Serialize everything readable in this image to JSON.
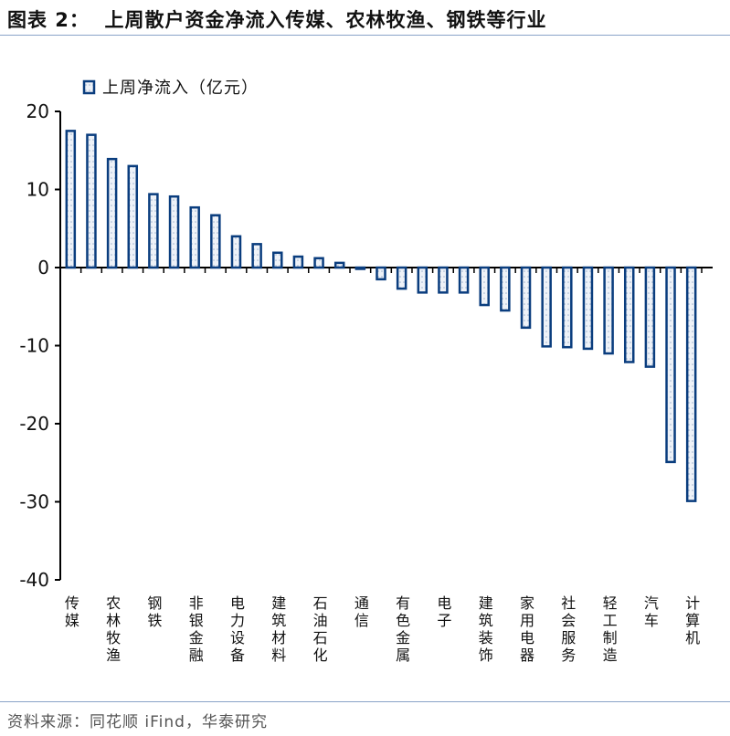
{
  "title": "图表 2：  上周散户资金净流入传媒、农林牧渔、钢铁等行业",
  "source": "资料来源：同花顺 iFind，华泰研究",
  "colors": {
    "bar_stroke": "#0a3d7e",
    "bar_fill": "#eef2f8",
    "title_rule": "#8aa3c8"
  },
  "chart_data": {
    "type": "bar",
    "title": "",
    "xlabel": "",
    "ylabel": "",
    "ylim": [
      -40,
      20
    ],
    "yticks": [
      20,
      10,
      0,
      -10,
      -20,
      -30,
      -40
    ],
    "grid": false,
    "legend": {
      "position": "top-left",
      "entries": [
        "上周净流入（亿元）"
      ]
    },
    "categories": [
      "传媒",
      "",
      "农林牧渔",
      "",
      "钢铁",
      "",
      "非银金融",
      "",
      "电力设备",
      "",
      "建筑材料",
      "",
      "石油石化",
      "",
      "通信",
      "",
      "有色金属",
      "",
      "电子",
      "",
      "建筑装饰",
      "",
      "家用电器",
      "",
      "社会服务",
      "",
      "轻工制造",
      "",
      "汽车",
      "",
      "计算机"
    ],
    "series": [
      {
        "name": "上周净流入（亿元）",
        "values": [
          17.5,
          17.0,
          13.9,
          13.0,
          9.4,
          9.1,
          7.7,
          6.7,
          4.0,
          3.0,
          1.9,
          1.4,
          1.2,
          0.6,
          -0.1,
          -1.5,
          -2.7,
          -3.2,
          -3.2,
          -3.2,
          -4.8,
          -5.5,
          -7.7,
          -10.1,
          -10.2,
          -10.4,
          -11.0,
          -12.1,
          -12.7,
          -24.9,
          -29.9
        ]
      }
    ]
  }
}
